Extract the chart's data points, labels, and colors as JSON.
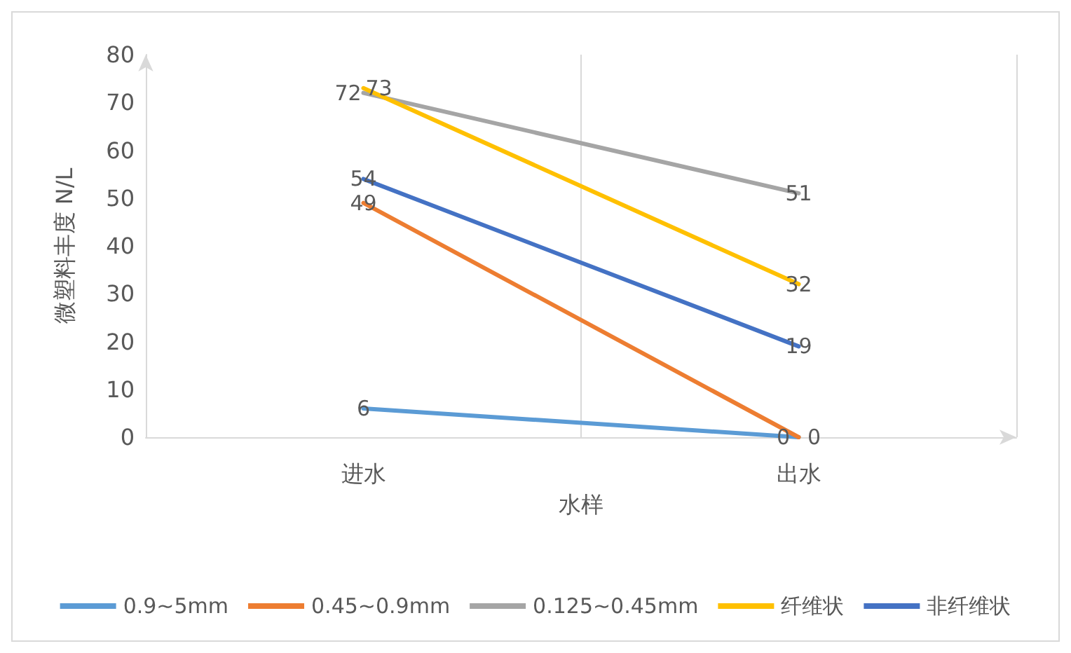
{
  "chart_data": {
    "type": "line",
    "xlabel": "水样",
    "ylabel": "微塑料丰度 N/L",
    "categories": [
      "进水",
      "出水"
    ],
    "series": [
      {
        "name": "0.9~5mm",
        "color": "#5b9bd5",
        "values": [
          6,
          0
        ]
      },
      {
        "name": "0.45~0.9mm",
        "color": "#ed7d31",
        "values": [
          49,
          0
        ]
      },
      {
        "name": "0.125~0.45mm",
        "color": "#a5a5a5",
        "values": [
          72,
          51
        ]
      },
      {
        "name": "纤维状",
        "color": "#ffc000",
        "values": [
          73,
          32
        ]
      },
      {
        "name": "非纤维状",
        "color": "#4472c4",
        "values": [
          54,
          19
        ]
      }
    ],
    "ylim": [
      0,
      80
    ],
    "yticks": [
      0,
      10,
      20,
      30,
      40,
      50,
      60,
      70,
      80
    ],
    "grid": "x",
    "legend": "bottom",
    "marker": "none",
    "line_style": "solid",
    "data_labels": true
  }
}
